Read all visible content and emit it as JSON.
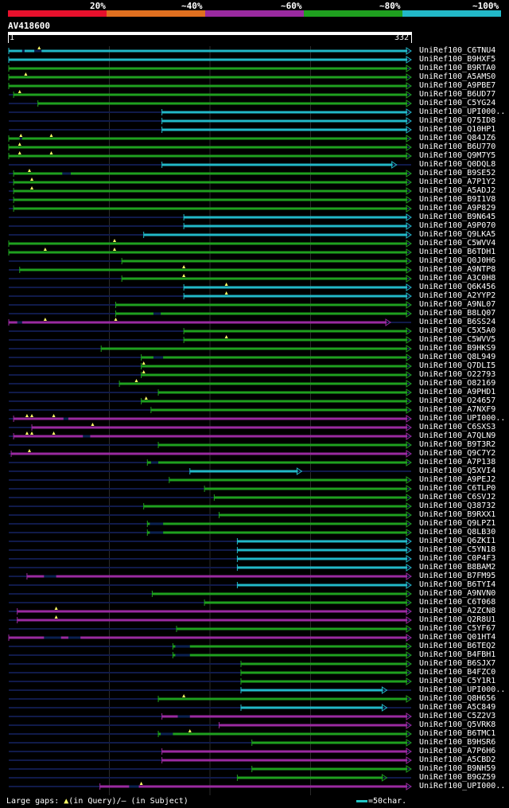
{
  "legend": {
    "labels": [
      "20%",
      "~40%",
      "~60%",
      "~80%",
      "~100%"
    ],
    "colors": [
      "#e8102c",
      "#e07020",
      "#9a2aa0",
      "#1fa01f",
      "#22b8c8"
    ]
  },
  "query": {
    "name": "AV418600",
    "length": 332,
    "start_label": "1",
    "end_label": "332"
  },
  "hits": [
    {
      "name": "UniRef100_C6TNU4",
      "c": 4,
      "s": 1,
      "e": 332,
      "gaps": [
        [
          12,
          14
        ],
        [
          22,
          28
        ]
      ],
      "tq": [
        26
      ]
    },
    {
      "name": "UniRef100_B9HXF5",
      "c": 4,
      "s": 1,
      "e": 332,
      "gaps": [],
      "tq": []
    },
    {
      "name": "UniRef100_B9RTA0",
      "c": 3,
      "s": 1,
      "e": 332,
      "gaps": [],
      "tq": []
    },
    {
      "name": "UniRef100_A5AMS0",
      "c": 3,
      "s": 1,
      "e": 332,
      "gaps": [],
      "tq": [
        15
      ]
    },
    {
      "name": "UniRef100_A9PBE7",
      "c": 3,
      "s": 1,
      "e": 332,
      "gaps": [],
      "tq": []
    },
    {
      "name": "UniRef100_B6UD77",
      "c": 3,
      "s": 5,
      "e": 332,
      "gaps": [],
      "tq": [
        10
      ]
    },
    {
      "name": "UniRef100_C5YG24",
      "c": 3,
      "s": 25,
      "e": 332,
      "gaps": [],
      "tq": []
    },
    {
      "name": "UniRef100_UPI000..",
      "c": 4,
      "s": 127,
      "e": 332,
      "gaps": [],
      "tq": []
    },
    {
      "name": "UniRef100_Q75ID8",
      "c": 4,
      "s": 127,
      "e": 332,
      "gaps": [],
      "tq": []
    },
    {
      "name": "UniRef100_Q10HP1",
      "c": 4,
      "s": 127,
      "e": 332,
      "gaps": [],
      "tq": []
    },
    {
      "name": "UniRef100_Q84JZ6",
      "c": 3,
      "s": 1,
      "e": 332,
      "gaps": [
        [
          10,
          12
        ]
      ],
      "tq": [
        11,
        36
      ]
    },
    {
      "name": "UniRef100_B6U770",
      "c": 3,
      "s": 1,
      "e": 332,
      "gaps": [],
      "tq": [
        10
      ]
    },
    {
      "name": "UniRef100_Q9M7Y5",
      "c": 3,
      "s": 1,
      "e": 332,
      "gaps": [],
      "tq": [
        10,
        36
      ]
    },
    {
      "name": "UniRef100_Q0DQL8",
      "c": 4,
      "s": 127,
      "e": 320,
      "gaps": [],
      "tq": []
    },
    {
      "name": "UniRef100_B9SE52",
      "c": 3,
      "s": 5,
      "e": 332,
      "gaps": [
        [
          45,
          52
        ]
      ],
      "tq": [
        18
      ]
    },
    {
      "name": "UniRef100_A7P1Y2",
      "c": 3,
      "s": 5,
      "e": 332,
      "gaps": [],
      "tq": [
        20
      ]
    },
    {
      "name": "UniRef100_A5ADJ2",
      "c": 3,
      "s": 5,
      "e": 332,
      "gaps": [],
      "tq": [
        20
      ]
    },
    {
      "name": "UniRef100_B9I1V8",
      "c": 3,
      "s": 5,
      "e": 332,
      "gaps": [],
      "tq": []
    },
    {
      "name": "UniRef100_A9P829",
      "c": 3,
      "s": 5,
      "e": 332,
      "gaps": [],
      "tq": []
    },
    {
      "name": "UniRef100_B9N645",
      "c": 4,
      "s": 145,
      "e": 332,
      "gaps": [],
      "tq": []
    },
    {
      "name": "UniRef100_A9P070",
      "c": 4,
      "s": 145,
      "e": 332,
      "gaps": [],
      "tq": []
    },
    {
      "name": "UniRef100_Q9LKA5",
      "c": 4,
      "s": 112,
      "e": 332,
      "gaps": [],
      "tq": []
    },
    {
      "name": "UniRef100_C5WVV4",
      "c": 3,
      "s": 1,
      "e": 332,
      "gaps": [],
      "tq": [
        88
      ]
    },
    {
      "name": "UniRef100_B6TDH1",
      "c": 3,
      "s": 1,
      "e": 332,
      "gaps": [],
      "tq": [
        31,
        88
      ]
    },
    {
      "name": "UniRef100_Q0J0H6",
      "c": 3,
      "s": 94,
      "e": 332,
      "gaps": [],
      "tq": []
    },
    {
      "name": "UniRef100_A9NTP8",
      "c": 3,
      "s": 10,
      "e": 332,
      "gaps": [],
      "tq": [
        145
      ]
    },
    {
      "name": "UniRef100_A3C0H8",
      "c": 3,
      "s": 94,
      "e": 332,
      "gaps": [],
      "tq": [
        145
      ]
    },
    {
      "name": "UniRef100_Q6K456",
      "c": 4,
      "s": 145,
      "e": 332,
      "gaps": [],
      "tq": [
        180
      ]
    },
    {
      "name": "UniRef100_A2YYP2",
      "c": 4,
      "s": 145,
      "e": 332,
      "gaps": [],
      "tq": [
        180
      ]
    },
    {
      "name": "UniRef100_A9NL07",
      "c": 3,
      "s": 89,
      "e": 332,
      "gaps": [],
      "tq": []
    },
    {
      "name": "UniRef100_B8LQ07",
      "c": 3,
      "s": 89,
      "e": 332,
      "gaps": [
        [
          120,
          126
        ]
      ],
      "tq": []
    },
    {
      "name": "UniRef100_B6SS24",
      "c": 2,
      "s": 1,
      "e": 315,
      "gaps": [
        [
          8,
          12
        ]
      ],
      "tq": [
        31,
        89
      ]
    },
    {
      "name": "UniRef100_C5X5A0",
      "c": 3,
      "s": 145,
      "e": 332,
      "gaps": [],
      "tq": []
    },
    {
      "name": "UniRef100_C5WVV5",
      "c": 3,
      "s": 145,
      "e": 332,
      "gaps": [],
      "tq": [
        180
      ]
    },
    {
      "name": "UniRef100_B9HKS9",
      "c": 3,
      "s": 77,
      "e": 332,
      "gaps": [],
      "tq": []
    },
    {
      "name": "UniRef100_Q8L949",
      "c": 3,
      "s": 110,
      "e": 332,
      "gaps": [
        [
          120,
          128
        ]
      ],
      "tq": []
    },
    {
      "name": "UniRef100_Q7DLI5",
      "c": 3,
      "s": 110,
      "e": 332,
      "gaps": [],
      "tq": [
        112
      ]
    },
    {
      "name": "UniRef100_O22793",
      "c": 3,
      "s": 110,
      "e": 332,
      "gaps": [],
      "tq": [
        112
      ]
    },
    {
      "name": "UniRef100_O82169",
      "c": 3,
      "s": 92,
      "e": 332,
      "gaps": [],
      "tq": [
        106
      ]
    },
    {
      "name": "UniRef100_A9PHD1",
      "c": 3,
      "s": 124,
      "e": 332,
      "gaps": [],
      "tq": []
    },
    {
      "name": "UniRef100_O24657",
      "c": 3,
      "s": 110,
      "e": 332,
      "gaps": [],
      "tq": [
        114
      ]
    },
    {
      "name": "UniRef100_A7NXF9",
      "c": 3,
      "s": 118,
      "e": 332,
      "gaps": [],
      "tq": []
    },
    {
      "name": "UniRef100_UPI000..",
      "c": 2,
      "s": 5,
      "e": 332,
      "gaps": [
        [
          46,
          50
        ]
      ],
      "tq": [
        16,
        20,
        38
      ]
    },
    {
      "name": "UniRef100_C6SXS3",
      "c": 2,
      "s": 20,
      "e": 332,
      "gaps": [],
      "tq": [
        70
      ]
    },
    {
      "name": "UniRef100_A7QLN9",
      "c": 2,
      "s": 5,
      "e": 332,
      "gaps": [
        [
          62,
          68
        ]
      ],
      "tq": [
        16,
        20,
        38
      ]
    },
    {
      "name": "UniRef100_B9T3R2",
      "c": 3,
      "s": 124,
      "e": 332,
      "gaps": [],
      "tq": []
    },
    {
      "name": "UniRef100_Q9C7Y2",
      "c": 2,
      "s": 3,
      "e": 332,
      "gaps": [],
      "tq": [
        18
      ]
    },
    {
      "name": "UniRef100_A7P138",
      "c": 3,
      "s": 115,
      "e": 332,
      "gaps": [
        [
          118,
          124
        ]
      ],
      "tq": []
    },
    {
      "name": "UniRef100_Q5XVI4",
      "c": 4,
      "s": 150,
      "e": 242,
      "gaps": [],
      "tq": []
    },
    {
      "name": "UniRef100_A9PEJ2",
      "c": 3,
      "s": 133,
      "e": 332,
      "gaps": [],
      "tq": []
    },
    {
      "name": "UniRef100_C6TLP0",
      "c": 3,
      "s": 162,
      "e": 332,
      "gaps": [],
      "tq": []
    },
    {
      "name": "UniRef100_C6SVJ2",
      "c": 3,
      "s": 170,
      "e": 332,
      "gaps": [],
      "tq": []
    },
    {
      "name": "UniRef100_Q38732",
      "c": 3,
      "s": 112,
      "e": 332,
      "gaps": [],
      "tq": []
    },
    {
      "name": "UniRef100_B9RXX1",
      "c": 3,
      "s": 174,
      "e": 332,
      "gaps": [],
      "tq": []
    },
    {
      "name": "UniRef100_Q9LPZ1",
      "c": 3,
      "s": 115,
      "e": 332,
      "gaps": [
        [
          117,
          128
        ]
      ],
      "tq": []
    },
    {
      "name": "UniRef100_Q8LB30",
      "c": 3,
      "s": 115,
      "e": 332,
      "gaps": [
        [
          117,
          128
        ]
      ],
      "tq": []
    },
    {
      "name": "UniRef100_Q6ZKI1",
      "c": 4,
      "s": 189,
      "e": 332,
      "gaps": [],
      "tq": []
    },
    {
      "name": "UniRef100_C5YN18",
      "c": 4,
      "s": 189,
      "e": 332,
      "gaps": [],
      "tq": []
    },
    {
      "name": "UniRef100_C0P4F3",
      "c": 4,
      "s": 189,
      "e": 332,
      "gaps": [],
      "tq": []
    },
    {
      "name": "UniRef100_B8BAM2",
      "c": 4,
      "s": 189,
      "e": 332,
      "gaps": [],
      "tq": []
    },
    {
      "name": "UniRef100_B7FM95",
      "c": 2,
      "s": 16,
      "e": 332,
      "gaps": [
        [
          30,
          40
        ]
      ],
      "tq": []
    },
    {
      "name": "UniRef100_B6TYI4",
      "c": 4,
      "s": 189,
      "e": 332,
      "gaps": [],
      "tq": []
    },
    {
      "name": "UniRef100_A9NVN0",
      "c": 3,
      "s": 119,
      "e": 332,
      "gaps": [],
      "tq": []
    },
    {
      "name": "UniRef100_C6T068",
      "c": 3,
      "s": 162,
      "e": 332,
      "gaps": [],
      "tq": []
    },
    {
      "name": "UniRef100_A2ZCN8",
      "c": 2,
      "s": 8,
      "e": 332,
      "gaps": [],
      "tq": [
        40
      ]
    },
    {
      "name": "UniRef100_Q2R8U1",
      "c": 2,
      "s": 8,
      "e": 332,
      "gaps": [],
      "tq": [
        40
      ]
    },
    {
      "name": "UniRef100_C5YF67",
      "c": 3,
      "s": 139,
      "e": 332,
      "gaps": [],
      "tq": []
    },
    {
      "name": "UniRef100_Q01HT4",
      "c": 2,
      "s": 1,
      "e": 332,
      "gaps": [
        [
          30,
          44
        ],
        [
          50,
          60
        ]
      ],
      "tq": []
    },
    {
      "name": "UniRef100_B6TEQ2",
      "c": 3,
      "s": 136,
      "e": 332,
      "gaps": [
        [
          138,
          150
        ]
      ],
      "tq": []
    },
    {
      "name": "UniRef100_B4FBH1",
      "c": 3,
      "s": 136,
      "e": 332,
      "gaps": [
        [
          138,
          150
        ]
      ],
      "tq": []
    },
    {
      "name": "UniRef100_B6SJX7",
      "c": 3,
      "s": 192,
      "e": 332,
      "gaps": [],
      "tq": []
    },
    {
      "name": "UniRef100_B4FZC0",
      "c": 3,
      "s": 192,
      "e": 332,
      "gaps": [],
      "tq": []
    },
    {
      "name": "UniRef100_C5Y1R1",
      "c": 3,
      "s": 192,
      "e": 332,
      "gaps": [],
      "tq": []
    },
    {
      "name": "UniRef100_UPI000..",
      "c": 4,
      "s": 192,
      "e": 312,
      "gaps": [],
      "tq": []
    },
    {
      "name": "UniRef100_Q8H656",
      "c": 3,
      "s": 124,
      "e": 332,
      "gaps": [],
      "tq": [
        145
      ]
    },
    {
      "name": "UniRef100_A5C849",
      "c": 4,
      "s": 192,
      "e": 312,
      "gaps": [],
      "tq": []
    },
    {
      "name": "UniRef100_C5Z2V3",
      "c": 2,
      "s": 127,
      "e": 332,
      "gaps": [
        [
          140,
          150
        ]
      ],
      "tq": []
    },
    {
      "name": "UniRef100_Q5VRK8",
      "c": 2,
      "s": 174,
      "e": 332,
      "gaps": [],
      "tq": []
    },
    {
      "name": "UniRef100_B6TMC1",
      "c": 3,
      "s": 124,
      "e": 332,
      "gaps": [
        [
          126,
          136
        ]
      ],
      "tq": [
        150
      ]
    },
    {
      "name": "UniRef100_B9HSR6",
      "c": 3,
      "s": 201,
      "e": 332,
      "gaps": [],
      "tq": []
    },
    {
      "name": "UniRef100_A7P6H6",
      "c": 2,
      "s": 127,
      "e": 332,
      "gaps": [],
      "tq": []
    },
    {
      "name": "UniRef100_A5CBD2",
      "c": 2,
      "s": 127,
      "e": 332,
      "gaps": [],
      "tq": []
    },
    {
      "name": "UniRef100_B9NH59",
      "c": 3,
      "s": 201,
      "e": 332,
      "gaps": [],
      "tq": []
    },
    {
      "name": "UniRef100_B9GZ59",
      "c": 3,
      "s": 189,
      "e": 312,
      "gaps": [],
      "tq": []
    },
    {
      "name": "UniRef100_UPI000..",
      "c": 2,
      "s": 76,
      "e": 332,
      "gaps": [
        [
          100,
          108
        ]
      ],
      "tq": [
        110
      ]
    }
  ],
  "footer": {
    "prefix": "Large gaps: ",
    "query_gap_symbol": "▲",
    "query_gap_text": "(in Query)/",
    "subject_gap_text": "– (in Subject)",
    "scale_text": "=50char."
  }
}
